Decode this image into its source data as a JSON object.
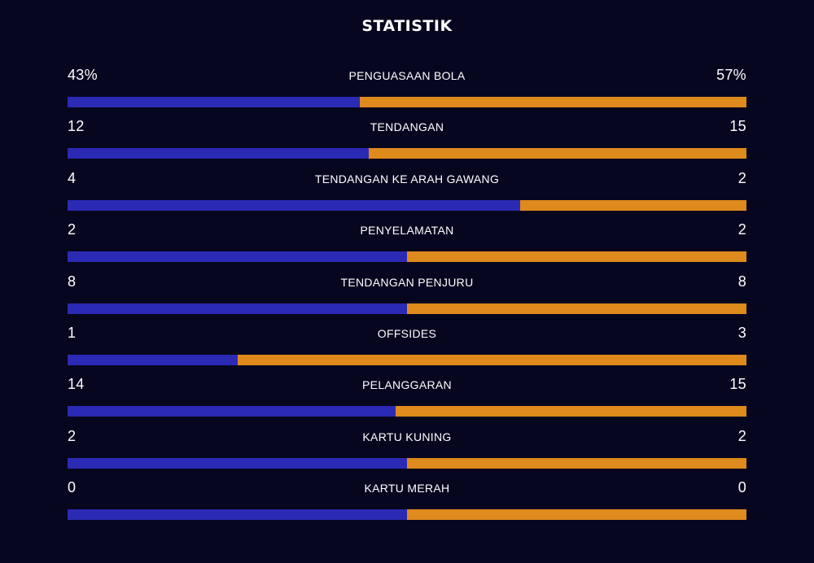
{
  "title": "STATISTIK",
  "colors": {
    "background": "#07061f",
    "home_bar": "#2a2ab4",
    "away_bar": "#de8a1c"
  },
  "stats": [
    {
      "label": "PENGUASAAN BOLA",
      "home": "43%",
      "away": "57%",
      "home_share": 0.43
    },
    {
      "label": "TENDANGAN",
      "home": "12",
      "away": "15",
      "home_share": 0.444
    },
    {
      "label": "TENDANGAN KE ARAH GAWANG",
      "home": "4",
      "away": "2",
      "home_share": 0.667
    },
    {
      "label": "PENYELAMATAN",
      "home": "2",
      "away": "2",
      "home_share": 0.5
    },
    {
      "label": "TENDANGAN PENJURU",
      "home": "8",
      "away": "8",
      "home_share": 0.5
    },
    {
      "label": "OFFSIDES",
      "home": "1",
      "away": "3",
      "home_share": 0.25
    },
    {
      "label": "PELANGGARAN",
      "home": "14",
      "away": "15",
      "home_share": 0.483
    },
    {
      "label": "KARTU KUNING",
      "home": "2",
      "away": "2",
      "home_share": 0.5
    },
    {
      "label": "KARTU MERAH",
      "home": "0",
      "away": "0",
      "home_share": 0.5
    }
  ]
}
